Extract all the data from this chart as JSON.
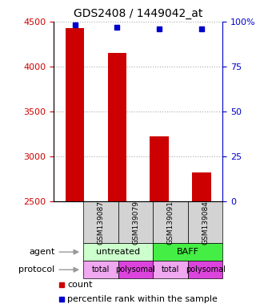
{
  "title": "GDS2408 / 1449042_at",
  "samples": [
    "GSM139087",
    "GSM139079",
    "GSM139091",
    "GSM139084"
  ],
  "counts": [
    4430,
    4150,
    3220,
    2820
  ],
  "percentiles": [
    98,
    97,
    96,
    96
  ],
  "ylim_left": [
    2500,
    4500
  ],
  "ylim_right": [
    0,
    100
  ],
  "yticks_left": [
    2500,
    3000,
    3500,
    4000,
    4500
  ],
  "yticks_right": [
    0,
    25,
    50,
    75,
    100
  ],
  "bar_color": "#cc0000",
  "dot_color": "#0000cc",
  "bar_bottom": 2500,
  "agent_labels": [
    "untreated",
    "BAFF"
  ],
  "agent_colors_left": "#ccffcc",
  "agent_colors_right": "#44ee44",
  "protocol_labels": [
    "total",
    "polysomal",
    "total",
    "polysomal"
  ],
  "proto_colors": [
    "#f0a8f0",
    "#dd44dd",
    "#f0a8f0",
    "#dd44dd"
  ],
  "sample_box_color": "#d3d3d3",
  "grid_color": "#aaaaaa",
  "tick_color_left": "#cc0000",
  "tick_color_right": "#0000cc",
  "legend_count_color": "#cc0000",
  "legend_pct_color": "#0000cc",
  "arrow_color": "#999999"
}
